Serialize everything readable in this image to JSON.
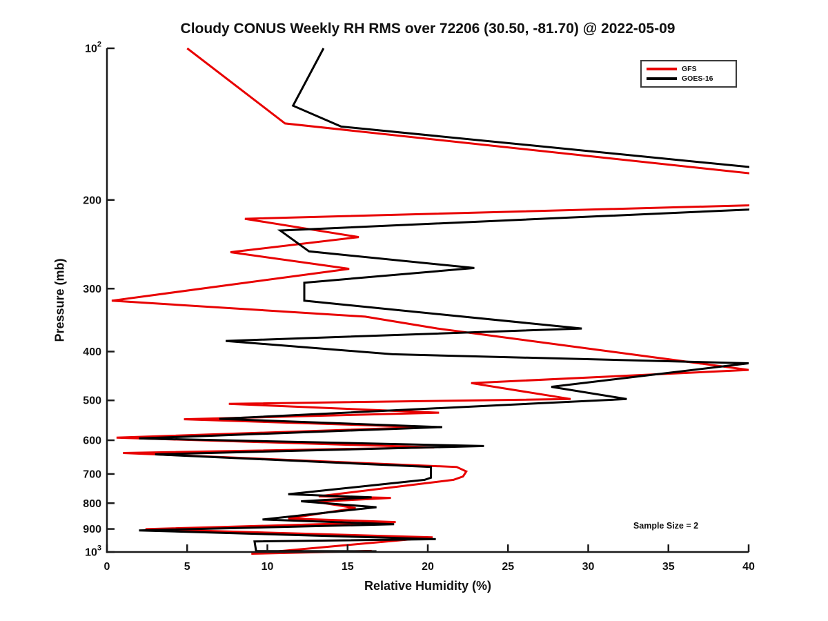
{
  "chart_data": {
    "type": "line",
    "title": "Cloudy CONUS Weekly RH RMS over 72206 (30.50, -81.70) @ 2022-05-09",
    "xlabel": "Relative Humidity (%)",
    "ylabel": "Pressure (mb)",
    "annotation": "Sample Size = 2",
    "x_axis": {
      "min": 0,
      "max": 40,
      "ticks": [
        0,
        5,
        10,
        15,
        20,
        25,
        30,
        35,
        40
      ],
      "scale": "linear"
    },
    "y_axis": {
      "min": 100,
      "max": 1000,
      "scale": "log",
      "inverted": true,
      "ticks": [
        {
          "p": 100,
          "base": "10",
          "exp": "2"
        },
        {
          "p": 200,
          "label": "200"
        },
        {
          "p": 300,
          "label": "300"
        },
        {
          "p": 400,
          "label": "400"
        },
        {
          "p": 500,
          "label": "500"
        },
        {
          "p": 600,
          "label": "600"
        },
        {
          "p": 700,
          "label": "700"
        },
        {
          "p": 800,
          "label": "800"
        },
        {
          "p": 900,
          "label": "900"
        },
        {
          "p": 1000,
          "base": "10",
          "exp": "3"
        }
      ]
    },
    "grid": false,
    "legend": {
      "position": "top-right",
      "entries": [
        {
          "label": "GFS",
          "color": "#e80000"
        },
        {
          "label": "GOES-16",
          "color": "#000000"
        }
      ]
    },
    "series": [
      {
        "name": "GFS",
        "color": "#e80000",
        "points_rh_pressure": [
          [
            5.0,
            100
          ],
          [
            11.1,
            141
          ],
          [
            49.0,
            190
          ],
          [
            40.0,
            205
          ],
          [
            8.6,
            218
          ],
          [
            15.7,
            237
          ],
          [
            7.7,
            254
          ],
          [
            15.1,
            274
          ],
          [
            0.3,
            317
          ],
          [
            16.1,
            341
          ],
          [
            20.6,
            360
          ],
          [
            40.0,
            435
          ],
          [
            22.7,
            462
          ],
          [
            28.9,
            497
          ],
          [
            7.6,
            508
          ],
          [
            20.7,
            529
          ],
          [
            4.8,
            545
          ],
          [
            19.9,
            565
          ],
          [
            0.6,
            593
          ],
          [
            20.4,
            620
          ],
          [
            1.0,
            636
          ],
          [
            21.8,
            678
          ],
          [
            22.4,
            692
          ],
          [
            22.2,
            708
          ],
          [
            21.6,
            719
          ],
          [
            13.2,
            775
          ],
          [
            17.7,
            781
          ],
          [
            13.0,
            795
          ],
          [
            15.5,
            818
          ],
          [
            11.3,
            858
          ],
          [
            18.0,
            872
          ],
          [
            2.4,
            901
          ],
          [
            20.3,
            935
          ],
          [
            9.0,
            1008
          ],
          [
            16.5,
            995
          ]
        ]
      },
      {
        "name": "GOES-16",
        "color": "#000000",
        "points_rh_pressure": [
          [
            13.5,
            100
          ],
          [
            11.6,
            130
          ],
          [
            14.6,
            143
          ],
          [
            50.0,
            185
          ],
          [
            40.0,
            209
          ],
          [
            10.8,
            230
          ],
          [
            12.6,
            253
          ],
          [
            22.9,
            273
          ],
          [
            12.3,
            292
          ],
          [
            12.3,
            317
          ],
          [
            29.6,
            360
          ],
          [
            7.4,
            381
          ],
          [
            17.8,
            405
          ],
          [
            40.0,
            422
          ],
          [
            27.7,
            470
          ],
          [
            32.4,
            497
          ],
          [
            7.0,
            544
          ],
          [
            20.9,
            565
          ],
          [
            2.0,
            595
          ],
          [
            23.5,
            616
          ],
          [
            3.0,
            640
          ],
          [
            20.2,
            678
          ],
          [
            20.2,
            712
          ],
          [
            19.8,
            719
          ],
          [
            11.3,
            768
          ],
          [
            16.5,
            779
          ],
          [
            12.1,
            793
          ],
          [
            16.8,
            815
          ],
          [
            9.7,
            862
          ],
          [
            17.9,
            881
          ],
          [
            2.0,
            906
          ],
          [
            20.5,
            943
          ],
          [
            9.2,
            953
          ],
          [
            9.3,
            996
          ],
          [
            16.8,
            997
          ]
        ]
      }
    ]
  }
}
